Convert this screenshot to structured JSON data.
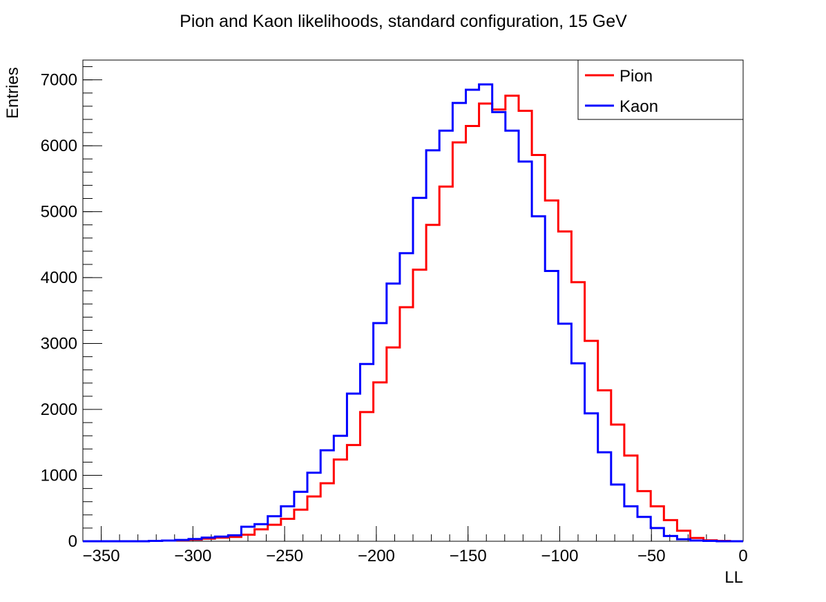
{
  "chart_data": {
    "type": "histogram-step",
    "title": "Pion and Kaon likelihoods, standard configuration, 15 GeV",
    "xlabel": "LL",
    "ylabel": "Entries",
    "xlim": [
      -360,
      0
    ],
    "ylim": [
      0,
      7300
    ],
    "x_ticks": [
      -350,
      -300,
      -250,
      -200,
      -150,
      -100,
      -50,
      0
    ],
    "x_tick_labels": [
      "−350",
      "−300",
      "−250",
      "−200",
      "−150",
      "−100",
      "−50",
      "0"
    ],
    "y_ticks": [
      0,
      1000,
      2000,
      3000,
      4000,
      5000,
      6000,
      7000
    ],
    "y_tick_labels": [
      "0",
      "1000",
      "2000",
      "3000",
      "4000",
      "5000",
      "6000",
      "7000"
    ],
    "bin_width": 7.2,
    "bin_edges_start": -360,
    "legend_position": "top-right",
    "series": [
      {
        "name": "Pion",
        "color": "#ff0000",
        "values": [
          0,
          0,
          0,
          0,
          0,
          5,
          10,
          15,
          25,
          40,
          55,
          65,
          100,
          180,
          250,
          340,
          480,
          680,
          880,
          1240,
          1460,
          1960,
          2410,
          2940,
          3550,
          4120,
          4800,
          5380,
          6050,
          6300,
          6640,
          6550,
          6760,
          6530,
          5860,
          5170,
          4700,
          3930,
          3040,
          2290,
          1770,
          1300,
          760,
          530,
          320,
          160,
          50,
          15,
          5,
          0
        ]
      },
      {
        "name": "Kaon",
        "color": "#0000ff",
        "values": [
          0,
          0,
          0,
          0,
          0,
          5,
          10,
          20,
          35,
          55,
          70,
          90,
          220,
          260,
          380,
          530,
          750,
          1040,
          1380,
          1600,
          2240,
          2690,
          3310,
          3910,
          4370,
          5210,
          5930,
          6230,
          6650,
          6850,
          6930,
          6510,
          6230,
          5760,
          4930,
          4100,
          3300,
          2700,
          1940,
          1350,
          860,
          530,
          370,
          200,
          80,
          30,
          10,
          5,
          0,
          0
        ]
      }
    ]
  }
}
